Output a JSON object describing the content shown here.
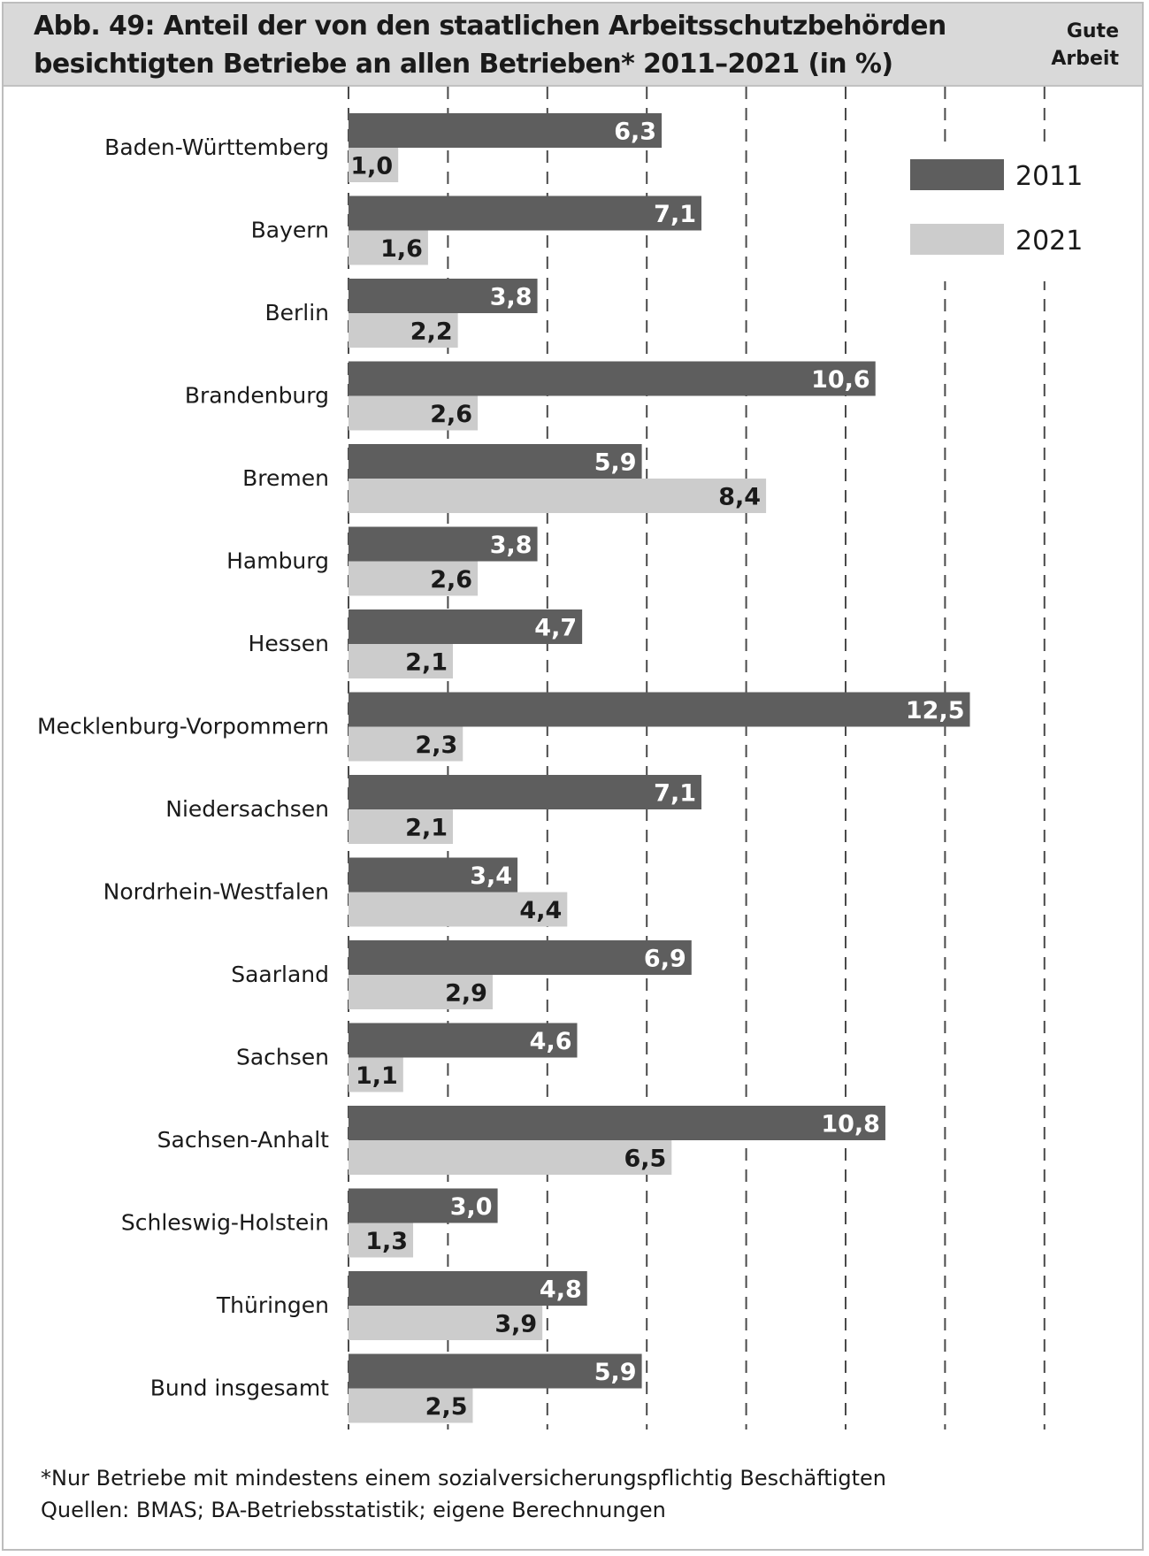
{
  "header": {
    "title": "Abb. 49: Anteil der von den staatlichen Arbeitsschutzbehörden besichtigten Betriebe an allen Betrieben* 2011–2021 (in %)",
    "brand_line1": "Gute",
    "brand_line2": "Arbeit"
  },
  "colors": {
    "series_2011": "#5e5e5e",
    "series_2021": "#cccccc",
    "header_bg": "#d9d9d9",
    "gridline": "#4a4a4a"
  },
  "chart_data": {
    "type": "bar",
    "orientation": "horizontal",
    "title": "Abb. 49: Anteil der von den staatlichen Arbeitsschutzbehörden besichtigten Betriebe an allen Betrieben* 2011–2021 (in %)",
    "xlabel": "",
    "ylabel": "",
    "xlim": [
      0,
      14
    ],
    "grid": "vertical dashed lines every 2",
    "legend_position": "top-right",
    "categories": [
      "Baden-Württemberg",
      "Bayern",
      "Berlin",
      "Brandenburg",
      "Bremen",
      "Hamburg",
      "Hessen",
      "Mecklenburg-Vorpommern",
      "Niedersachsen",
      "Nordrhein-Westfalen",
      "Saarland",
      "Sachsen",
      "Sachsen-Anhalt",
      "Schleswig-Holstein",
      "Thüringen",
      "Bund insgesamt"
    ],
    "series": [
      {
        "name": "2011",
        "values": [
          6.3,
          7.1,
          3.8,
          10.6,
          5.9,
          3.8,
          4.7,
          12.5,
          7.1,
          3.4,
          6.9,
          4.6,
          10.8,
          3.0,
          4.8,
          5.9
        ],
        "labels": [
          "6,3",
          "7,1",
          "3,8",
          "10,6",
          "5,9",
          "3,8",
          "4,7",
          "12,5",
          "7,1",
          "3,4",
          "6,9",
          "4,6",
          "10,8",
          "3,0",
          "4,8",
          "5,9"
        ]
      },
      {
        "name": "2021",
        "values": [
          1.0,
          1.6,
          2.2,
          2.6,
          8.4,
          2.6,
          2.1,
          2.3,
          2.1,
          4.4,
          2.9,
          1.1,
          6.5,
          1.3,
          3.9,
          2.5
        ],
        "labels": [
          "1,0",
          "1,6",
          "2,2",
          "2,6",
          "8,4",
          "2,6",
          "2,1",
          "2,3",
          "2,1",
          "4,4",
          "2,9",
          "1,1",
          "6,5",
          "1,3",
          "3,9",
          "2,5"
        ]
      }
    ]
  },
  "footnotes": {
    "note": "*Nur Betriebe mit mindestens einem sozialversicherungspflichtig Beschäftigten",
    "source": "Quellen: BMAS; BA-Betriebsstatistik; eigene Berechnungen"
  }
}
